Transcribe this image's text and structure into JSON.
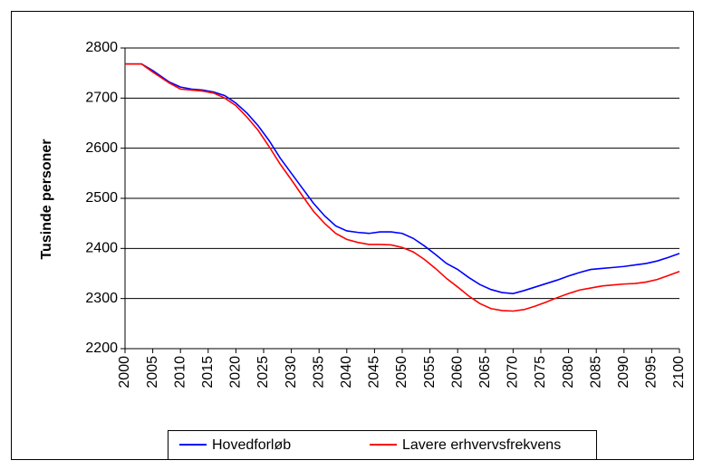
{
  "chart_data": {
    "type": "line",
    "ylabel": "Tusinde personer",
    "x": [
      2000,
      2003,
      2005,
      2008,
      2010,
      2012,
      2014,
      2016,
      2018,
      2020,
      2022,
      2024,
      2026,
      2028,
      2030,
      2032,
      2034,
      2036,
      2038,
      2040,
      2042,
      2044,
      2046,
      2048,
      2050,
      2052,
      2054,
      2056,
      2058,
      2060,
      2062,
      2064,
      2066,
      2068,
      2070,
      2072,
      2074,
      2076,
      2078,
      2080,
      2082,
      2084,
      2086,
      2088,
      2090,
      2092,
      2094,
      2096,
      2098,
      2100
    ],
    "series": [
      {
        "name": "Hovedforløb",
        "color": "#0000ff",
        "values": [
          2768,
          2768,
          2755,
          2732,
          2722,
          2718,
          2716,
          2712,
          2705,
          2690,
          2670,
          2645,
          2615,
          2580,
          2550,
          2520,
          2490,
          2465,
          2445,
          2435,
          2432,
          2430,
          2433,
          2433,
          2430,
          2420,
          2405,
          2388,
          2370,
          2358,
          2342,
          2328,
          2318,
          2312,
          2310,
          2316,
          2323,
          2330,
          2337,
          2345,
          2352,
          2358,
          2360,
          2362,
          2364,
          2367,
          2370,
          2375,
          2382,
          2390
        ]
      },
      {
        "name": "Lavere erhvervsfrekvens",
        "color": "#ff0000",
        "values": [
          2768,
          2768,
          2752,
          2730,
          2718,
          2716,
          2714,
          2710,
          2700,
          2685,
          2662,
          2636,
          2603,
          2568,
          2537,
          2505,
          2474,
          2450,
          2430,
          2418,
          2412,
          2408,
          2408,
          2407,
          2402,
          2393,
          2378,
          2360,
          2340,
          2323,
          2305,
          2290,
          2280,
          2276,
          2275,
          2278,
          2285,
          2293,
          2302,
          2310,
          2317,
          2321,
          2325,
          2327,
          2329,
          2330,
          2333,
          2338,
          2346,
          2354
        ]
      }
    ],
    "xlim": [
      2000,
      2100
    ],
    "xticks": [
      2000,
      2005,
      2010,
      2015,
      2020,
      2025,
      2030,
      2035,
      2040,
      2045,
      2050,
      2055,
      2060,
      2065,
      2070,
      2075,
      2080,
      2085,
      2090,
      2095,
      2100
    ],
    "ylim": [
      2200,
      2800
    ],
    "yticks": [
      2200,
      2300,
      2400,
      2500,
      2600,
      2700,
      2800
    ],
    "grid": true,
    "legend": "bottom"
  }
}
